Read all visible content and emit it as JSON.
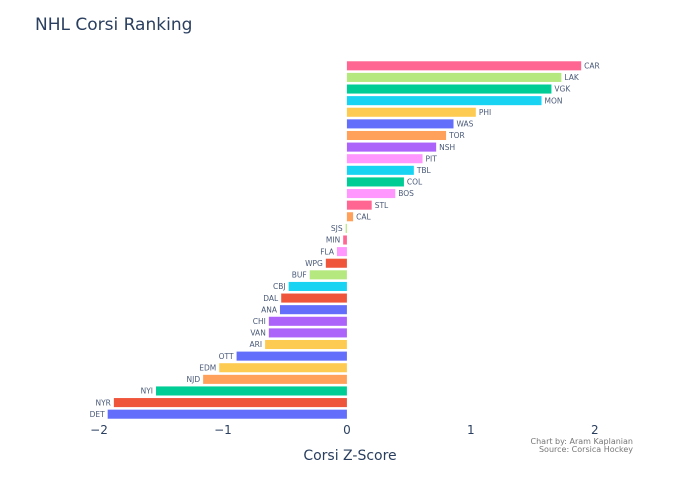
{
  "chart_data": {
    "type": "bar",
    "orientation": "horizontal",
    "title": "NHL Corsi Ranking",
    "xlabel": "Corsi Z-Score",
    "ylabel": "",
    "xlim": [
      -2,
      2.3
    ],
    "xticks": [
      -2,
      -1,
      0,
      1,
      2
    ],
    "xtick_labels": [
      "−2",
      "−1",
      "0",
      "1",
      "2"
    ],
    "grid": false,
    "legend": "none",
    "annotations": [
      "Chart by: Aram Kaplanian",
      "Source: Corsica Hockey"
    ],
    "categories": [
      "CAR",
      "LAK",
      "VGK",
      "MON",
      "PHI",
      "WAS",
      "TOR",
      "NSH",
      "PIT",
      "TBL",
      "COL",
      "BOS",
      "STL",
      "CAL",
      "SJS",
      "MIN",
      "FLA",
      "WPG",
      "BUF",
      "CBJ",
      "DAL",
      "ANA",
      "CHI",
      "VAN",
      "ARI",
      "OTT",
      "EDM",
      "NJD",
      "NYI",
      "NYR",
      "DET"
    ],
    "values": [
      1.89,
      1.73,
      1.65,
      1.57,
      1.04,
      0.86,
      0.8,
      0.72,
      0.61,
      0.54,
      0.46,
      0.39,
      0.2,
      0.05,
      -0.01,
      -0.03,
      -0.08,
      -0.17,
      -0.3,
      -0.47,
      -0.53,
      -0.54,
      -0.63,
      -0.63,
      -0.66,
      -0.89,
      -1.03,
      -1.16,
      -1.54,
      -1.88,
      -1.93
    ],
    "colors": [
      "#FF6692",
      "#B6E880",
      "#00CC96",
      "#19D3F3",
      "#FECB52",
      "#636EFA",
      "#FFA15A",
      "#AB63FA",
      "#FF97FF",
      "#19D3F3",
      "#00CC96",
      "#FF97FF",
      "#FF6692",
      "#FFA15A",
      "#B6E880",
      "#FF6692",
      "#FF97FF",
      "#EF553B",
      "#B6E880",
      "#19D3F3",
      "#EF553B",
      "#636EFA",
      "#AB63FA",
      "#AB63FA",
      "#FECB52",
      "#636EFA",
      "#FECB52",
      "#FFA15A",
      "#00CC96",
      "#EF553B",
      "#636EFA"
    ]
  }
}
